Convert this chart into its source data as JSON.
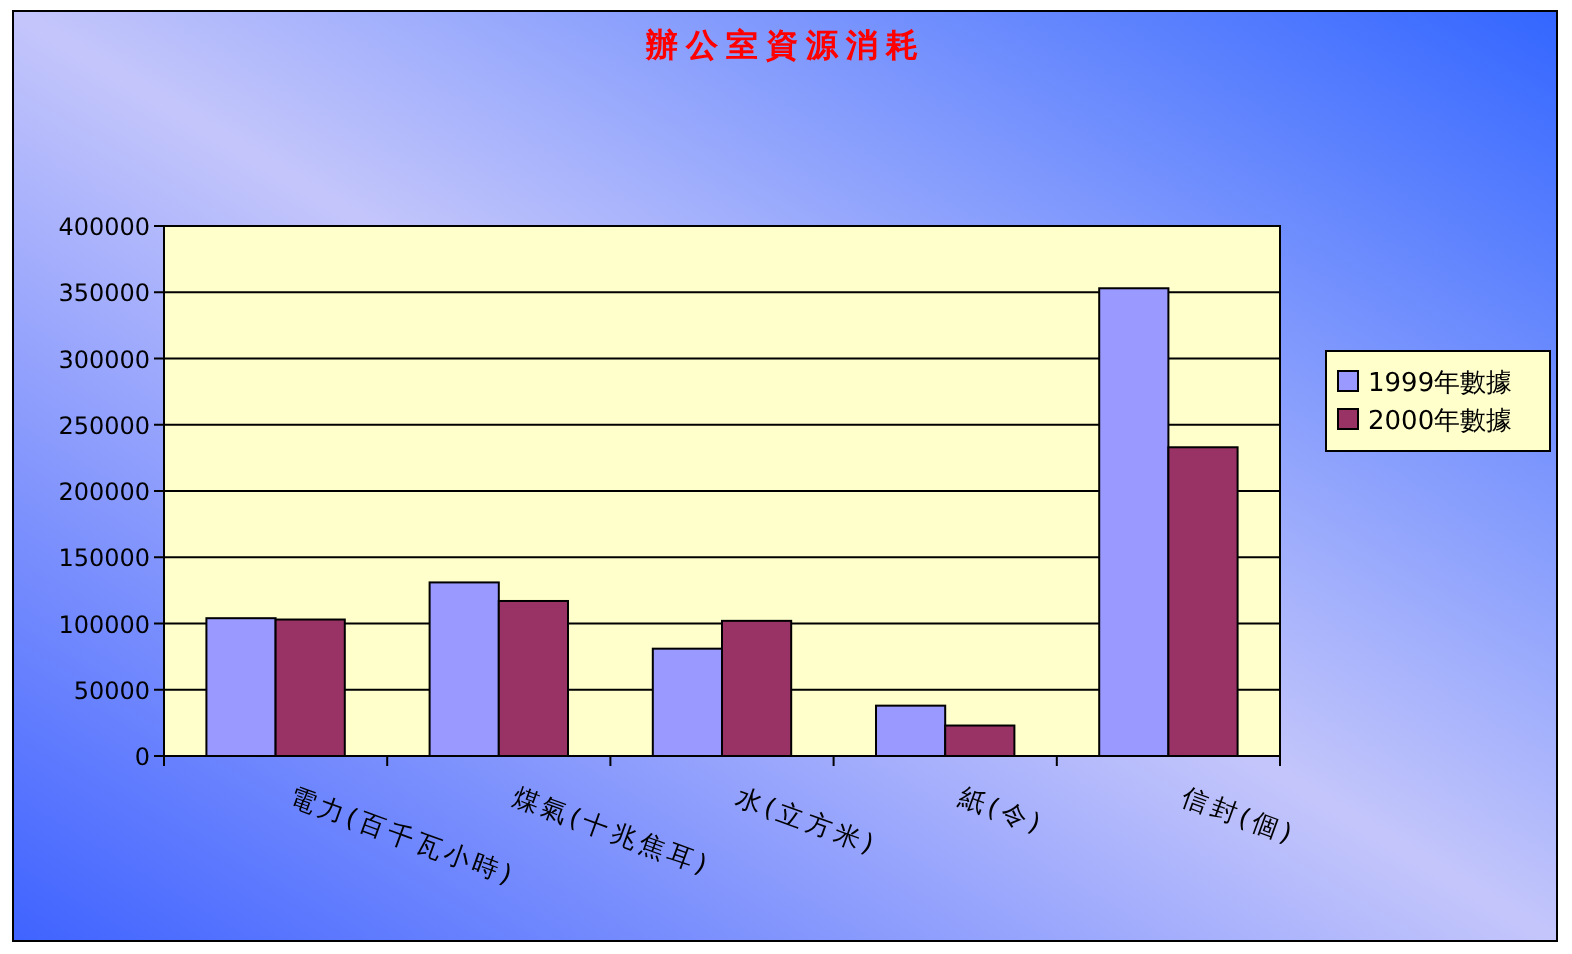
{
  "chart_data": {
    "type": "bar",
    "title": "辦公室資源消耗",
    "categories": [
      "電力(百千瓦小時)",
      "煤氣(十兆焦耳)",
      "水(立方米)",
      "紙(令)",
      "信封(個)"
    ],
    "series": [
      {
        "name": "1999年數據",
        "color": "#9999ff",
        "values": [
          104000,
          131000,
          81000,
          38000,
          353000
        ]
      },
      {
        "name": "2000年數據",
        "color": "#993366",
        "values": [
          103000,
          117000,
          102000,
          23000,
          233000
        ]
      }
    ],
    "ylim": [
      0,
      400000
    ],
    "yticks": [
      0,
      50000,
      100000,
      150000,
      200000,
      250000,
      300000,
      350000,
      400000
    ],
    "grid": "y",
    "legend": "right"
  }
}
